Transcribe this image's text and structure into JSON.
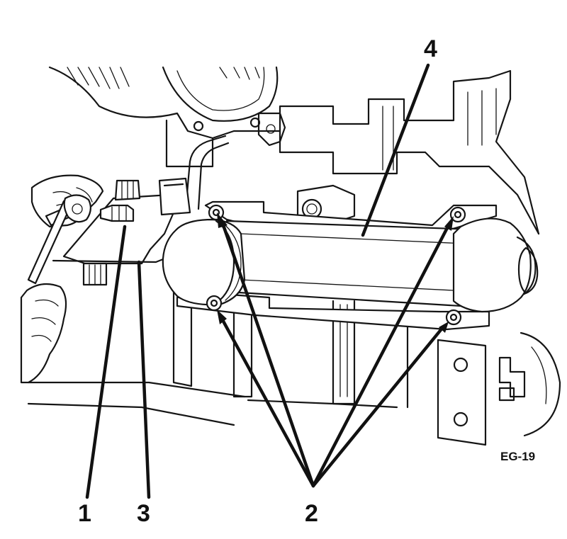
{
  "figure": {
    "figure_code": "EG-19",
    "callouts": [
      {
        "id": "1",
        "label": "1"
      },
      {
        "id": "2",
        "label": "2"
      },
      {
        "id": "3",
        "label": "3"
      },
      {
        "id": "4",
        "label": "4"
      }
    ]
  },
  "colors": {
    "line": "#151515",
    "background": "#ffffff"
  }
}
